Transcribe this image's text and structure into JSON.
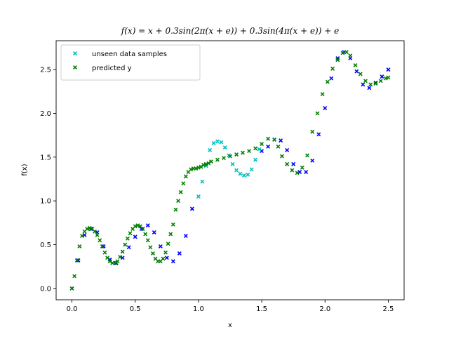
{
  "chart_data": {
    "type": "scatter",
    "title": "f(x) = x + 0.3sin(2π(x + e)) + 0.3sin(4π(x + e)) + e",
    "xlabel": "x",
    "ylabel": "f(x)",
    "xlim": [
      -0.125,
      2.625
    ],
    "ylim": [
      -0.13,
      2.83
    ],
    "xticks": [
      "0.0",
      "0.5",
      "1.0",
      "1.5",
      "2.0",
      "2.5"
    ],
    "yticks": [
      "0.0",
      "0.5",
      "1.0",
      "1.5",
      "2.0",
      "2.5"
    ],
    "legend_position": "top-left",
    "grid": false,
    "series": [
      {
        "name": "",
        "color": "#0000ff",
        "marker": "x",
        "x": [
          0.0,
          0.05,
          0.1,
          0.15,
          0.2,
          0.25,
          0.3,
          0.35,
          0.4,
          0.45,
          0.5,
          0.55,
          0.6,
          0.65,
          0.7,
          0.75,
          0.8,
          0.85,
          0.9,
          0.95,
          1.5,
          1.55,
          1.6,
          1.65,
          1.7,
          1.75,
          1.8,
          1.85,
          1.9,
          1.95,
          2.0,
          2.05,
          2.1,
          2.15,
          2.2,
          2.25,
          2.3,
          2.35,
          2.4,
          2.45,
          2.5
        ],
        "y": [
          0.0,
          0.32,
          0.61,
          0.68,
          0.64,
          0.48,
          0.33,
          0.29,
          0.35,
          0.47,
          0.59,
          0.68,
          0.72,
          0.64,
          0.48,
          0.35,
          0.31,
          0.4,
          0.6,
          0.91,
          1.57,
          1.62,
          1.7,
          1.69,
          1.58,
          1.42,
          1.33,
          1.33,
          1.46,
          1.76,
          2.06,
          2.4,
          2.63,
          2.7,
          2.63,
          2.48,
          2.33,
          2.29,
          2.35,
          2.42,
          2.5
        ]
      },
      {
        "name": "unseen data samples",
        "color": "#00bfbf",
        "marker": "x",
        "x": [
          1.0,
          1.03,
          1.06,
          1.09,
          1.12,
          1.15,
          1.18,
          1.21,
          1.24,
          1.27,
          1.3,
          1.33,
          1.36,
          1.39,
          1.42,
          1.45,
          1.48
        ],
        "y": [
          1.05,
          1.22,
          1.4,
          1.58,
          1.66,
          1.68,
          1.67,
          1.61,
          1.52,
          1.42,
          1.35,
          1.31,
          1.29,
          1.3,
          1.36,
          1.47,
          1.59
        ]
      },
      {
        "name": "predicted y",
        "color": "#008000",
        "marker": "x",
        "x": [
          0.0,
          0.02,
          0.04,
          0.06,
          0.08,
          0.1,
          0.12,
          0.14,
          0.16,
          0.18,
          0.2,
          0.22,
          0.24,
          0.26,
          0.28,
          0.3,
          0.32,
          0.34,
          0.36,
          0.38,
          0.4,
          0.42,
          0.44,
          0.46,
          0.48,
          0.5,
          0.52,
          0.54,
          0.56,
          0.58,
          0.6,
          0.62,
          0.64,
          0.66,
          0.68,
          0.7,
          0.72,
          0.74,
          0.76,
          0.78,
          0.8,
          0.82,
          0.84,
          0.86,
          0.88,
          0.9,
          0.92,
          0.94,
          0.96,
          0.98,
          1.0,
          1.02,
          1.04,
          1.06,
          1.08,
          1.1,
          1.15,
          1.2,
          1.25,
          1.3,
          1.35,
          1.4,
          1.45,
          1.5,
          1.55,
          1.6,
          1.63,
          1.66,
          1.7,
          1.74,
          1.78,
          1.82,
          1.86,
          1.9,
          1.94,
          1.98,
          2.02,
          2.06,
          2.1,
          2.14,
          2.17,
          2.2,
          2.24,
          2.28,
          2.32,
          2.36,
          2.4,
          2.44,
          2.48,
          2.5
        ],
        "y": [
          0.0,
          0.14,
          0.32,
          0.48,
          0.6,
          0.65,
          0.68,
          0.69,
          0.68,
          0.65,
          0.61,
          0.55,
          0.48,
          0.41,
          0.35,
          0.31,
          0.29,
          0.29,
          0.31,
          0.36,
          0.42,
          0.5,
          0.57,
          0.63,
          0.68,
          0.71,
          0.72,
          0.71,
          0.68,
          0.62,
          0.55,
          0.47,
          0.4,
          0.34,
          0.31,
          0.31,
          0.34,
          0.41,
          0.51,
          0.62,
          0.73,
          0.9,
          1.0,
          1.1,
          1.2,
          1.28,
          1.33,
          1.36,
          1.37,
          1.37,
          1.38,
          1.39,
          1.41,
          1.42,
          1.43,
          1.45,
          1.47,
          1.49,
          1.51,
          1.53,
          1.55,
          1.57,
          1.6,
          1.65,
          1.71,
          1.7,
          1.62,
          1.51,
          1.42,
          1.35,
          1.32,
          1.38,
          1.52,
          1.79,
          2.0,
          2.22,
          2.36,
          2.51,
          2.61,
          2.69,
          2.7,
          2.66,
          2.55,
          2.45,
          2.37,
          2.33,
          2.34,
          2.37,
          2.4,
          2.41
        ]
      }
    ]
  }
}
